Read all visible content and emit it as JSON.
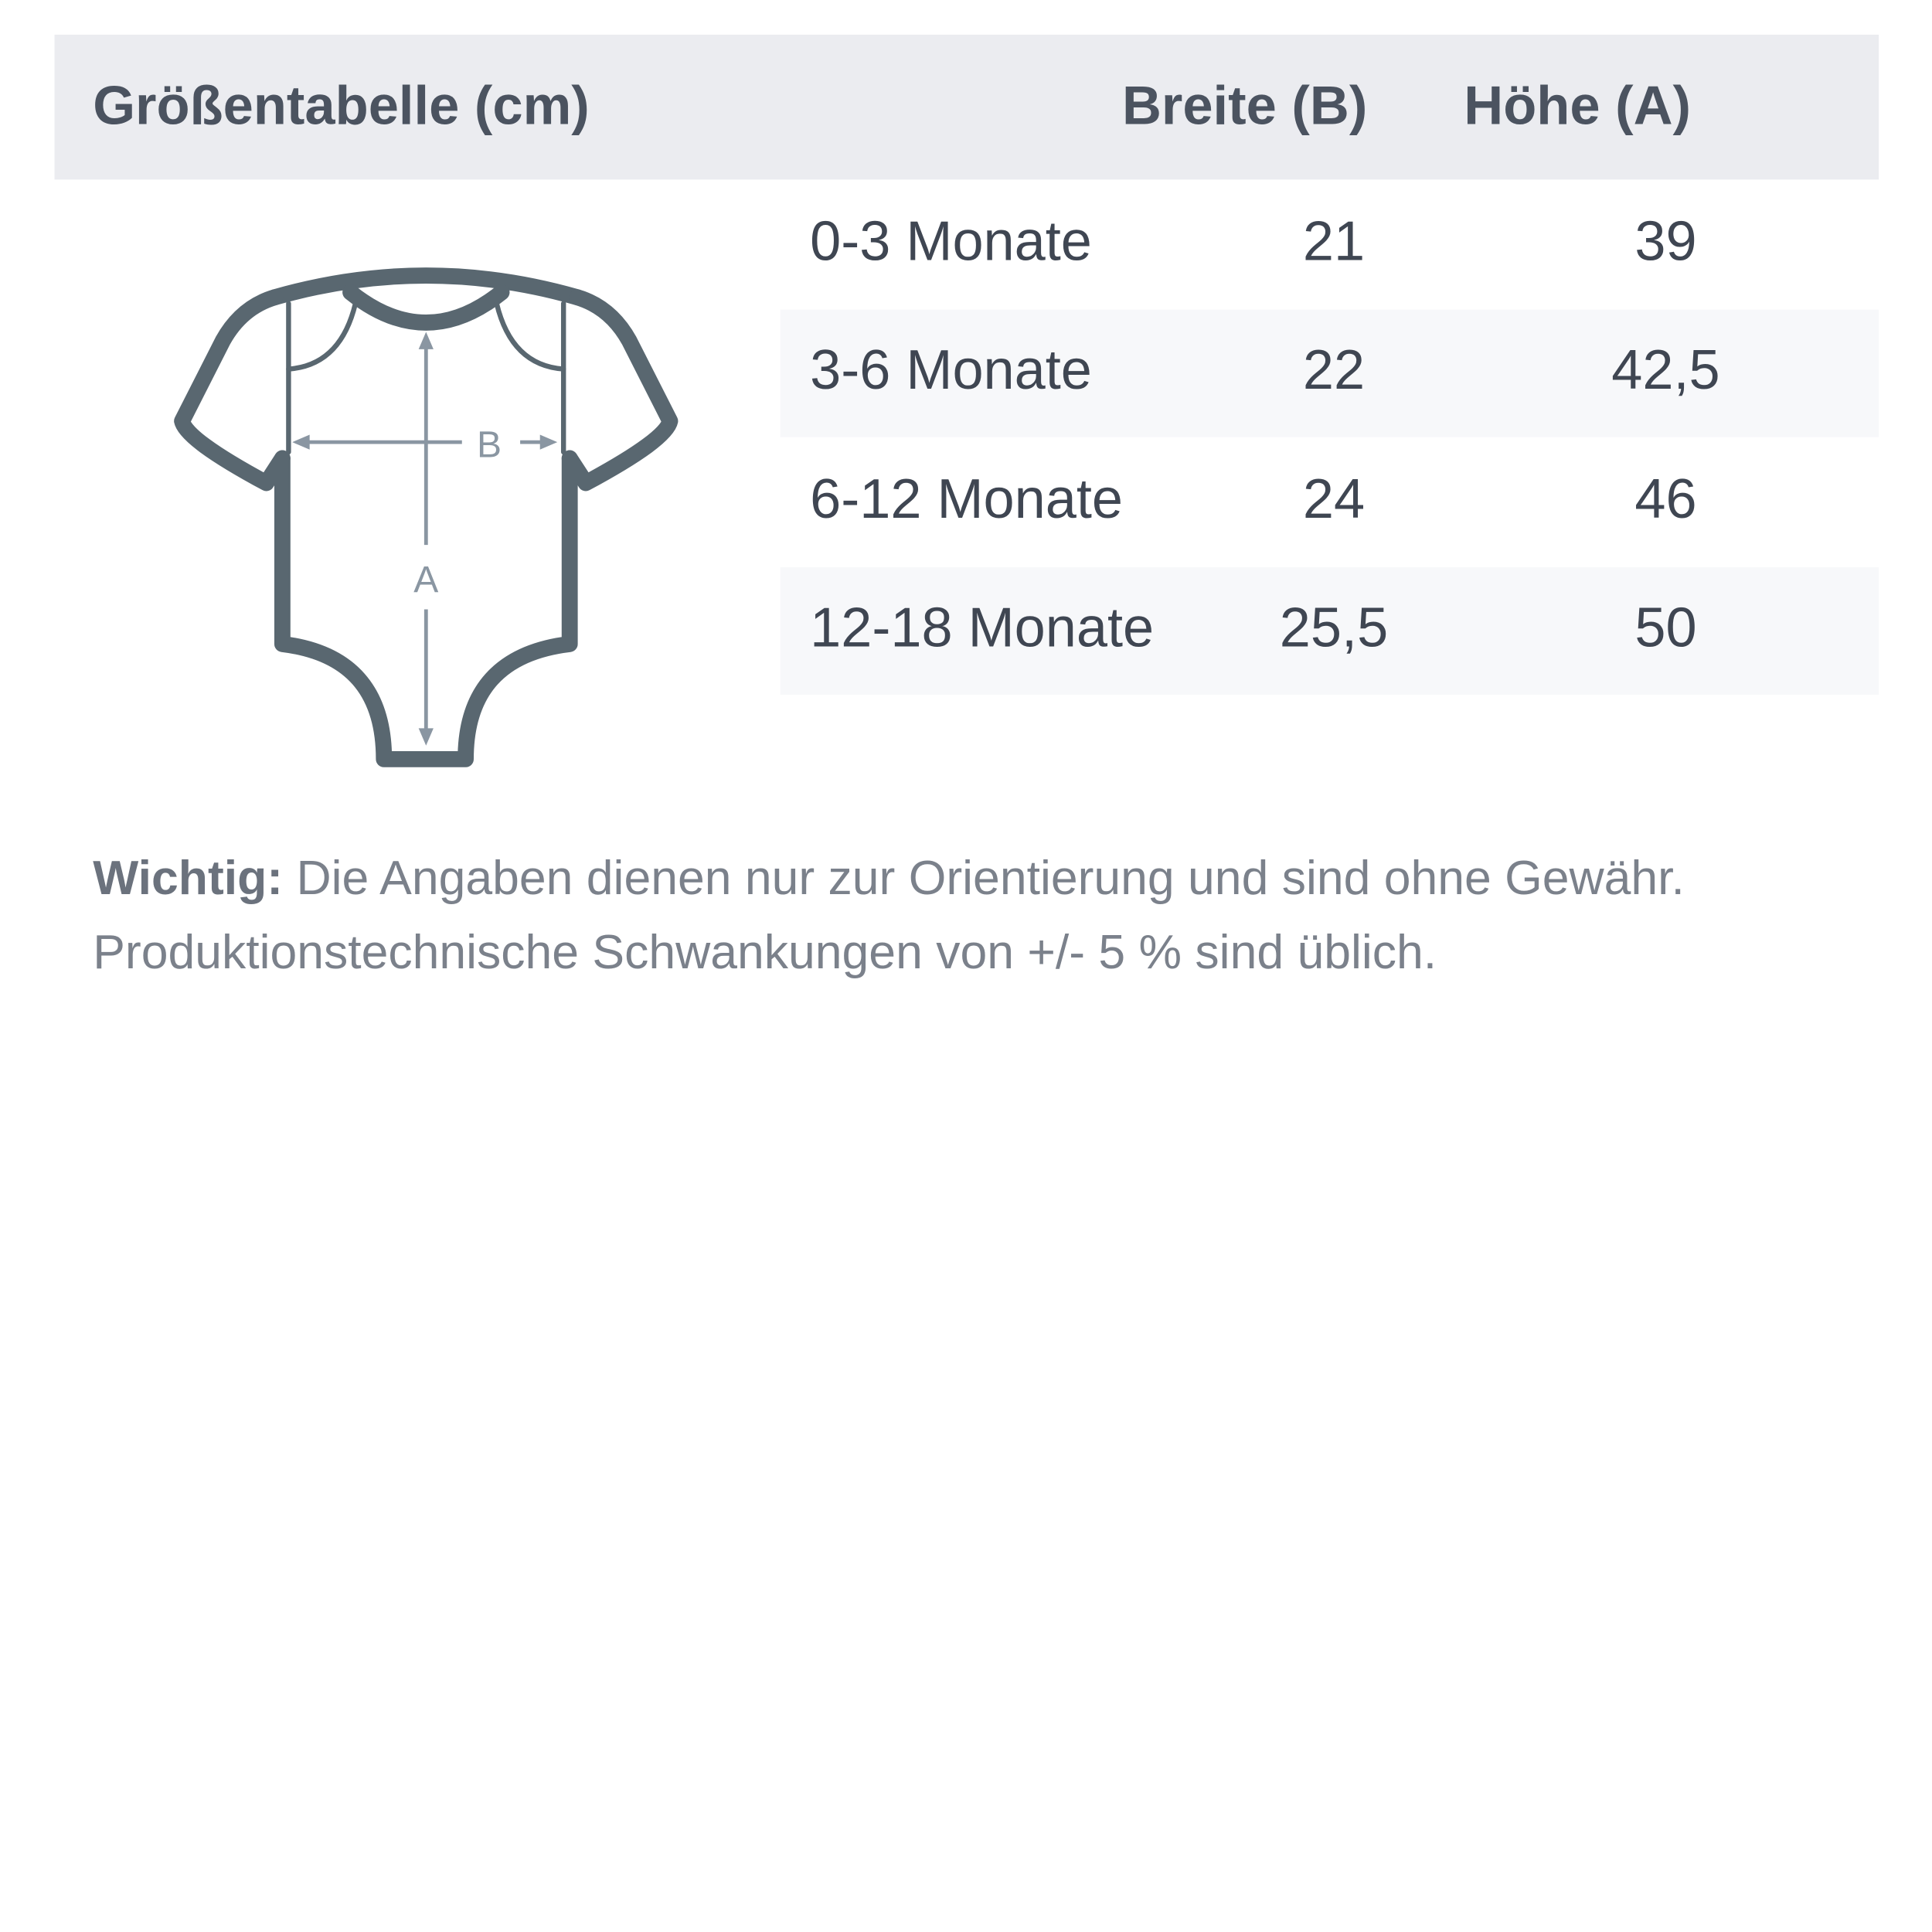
{
  "header": {
    "title": "Größentabelle (cm)",
    "col_width": "Breite (B)",
    "col_height": "Höhe (A)"
  },
  "rows": [
    {
      "size": "0-3 Monate",
      "width": "21",
      "height": "39"
    },
    {
      "size": "3-6 Monate",
      "width": "22",
      "height": "42,5"
    },
    {
      "size": "6-12 Monate",
      "width": "24",
      "height": "46"
    },
    {
      "size": "12-18 Monate",
      "width": "25,5",
      "height": "50"
    }
  ],
  "diagram": {
    "label_b": "B",
    "label_a": "A",
    "icon": "baby-bodysuit-icon",
    "outline_color": "#596770",
    "arrow_color": "#8a96a2"
  },
  "note": {
    "label": "Wichtig:",
    "text": " Die Angaben dienen nur zur Orientierung und sind ohne Gewähr. Produktionstechnische Schwankungen von +/- 5 % sind üblich."
  }
}
